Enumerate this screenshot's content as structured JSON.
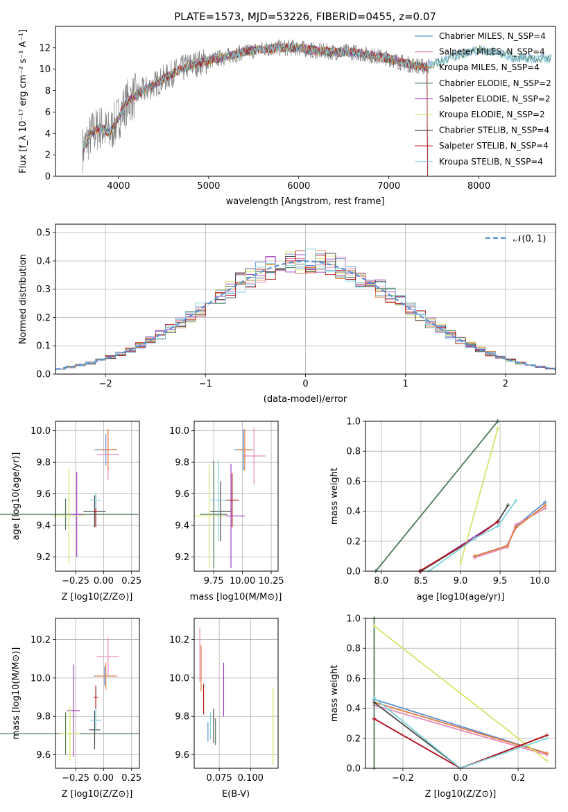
{
  "figure_title": "PLATE=1573, MJD=53226, FIBERID=0455, z=0.07",
  "models": [
    {
      "name": "Chabrier MILES",
      "color": "#5b8fd4"
    },
    {
      "name": "Salpeter MILES",
      "color": "#e889b9"
    },
    {
      "name": "Kroupa MILES",
      "color": "#e07b39"
    },
    {
      "name": "Chabrier ELODIE",
      "color": "#4c7a57"
    },
    {
      "name": "Salpeter ELODIE",
      "color": "#9a3fc9"
    },
    {
      "name": "Kroupa ELODIE",
      "color": "#d7e36a"
    },
    {
      "name": "Chabrier STELIB",
      "color": "#454545"
    },
    {
      "name": "Salpeter STELIB",
      "color": "#b8171a"
    },
    {
      "name": "Kroupa STELIB",
      "color": "#7fd3dc"
    }
  ],
  "chart_data": [
    {
      "id": "spectrum",
      "type": "line",
      "xlabel": "wavelength [Angstrom, rest frame]",
      "ylabel": "Flux [f_λ 10⁻¹⁷ erg cm⁻² s⁻¹ A⁻¹]",
      "xlim": [
        3300,
        8850
      ],
      "ylim": [
        0,
        14
      ],
      "xticks": [
        4000,
        5000,
        6000,
        7000,
        8000
      ],
      "yticks": [
        0,
        2,
        4,
        6,
        8,
        10,
        12
      ],
      "grid": false,
      "legend": "top-right",
      "legend_entries": [
        "Chabrier MILES, N_SSP=4",
        "Salpeter MILES, N_SSP=4",
        "Kroupa MILES, N_SSP=4",
        "Chabrier ELODIE, N_SSP=2",
        "Salpeter ELODIE, N_SSP=2",
        "Kroupa ELODIE, N_SSP=2",
        "Chabrier STELIB, N_SSP=4",
        "Salpeter STELIB, N_SSP=4",
        "Kroupa STELIB, N_SSP=4"
      ],
      "data_envelope": {
        "x": [
          3600,
          3700,
          3800,
          3900,
          4000,
          4100,
          4200,
          4400,
          4600,
          4800,
          5000,
          5200,
          5400,
          5600,
          5800,
          6000,
          6200,
          6400,
          6600,
          6800,
          7000,
          7200,
          7400,
          7600,
          7800,
          8000,
          8200,
          8400
        ],
        "y": [
          2.5,
          4.0,
          4.6,
          4.0,
          5.5,
          7.0,
          7.6,
          8.6,
          9.6,
          10.4,
          10.8,
          11.2,
          11.6,
          11.9,
          12.0,
          12.0,
          11.7,
          11.6,
          11.6,
          11.3,
          11.0,
          10.5,
          10.2,
          10.8,
          11.4,
          11.8,
          11.6,
          11.0
        ]
      }
    },
    {
      "id": "residuals",
      "type": "bar",
      "xlabel": "(data-model)/error",
      "ylabel": "Normed distribution",
      "xlim": [
        -2.5,
        2.5
      ],
      "ylim": [
        0,
        0.53
      ],
      "xticks": [
        -2,
        -1,
        0,
        1,
        2
      ],
      "yticks": [
        0.0,
        0.1,
        0.2,
        0.3,
        0.4,
        0.5
      ],
      "grid": true,
      "legend": "top-right",
      "legend_entries": [
        "N(0,1)"
      ],
      "bin_width": 0.1,
      "curve": {
        "name": "N(0,1)",
        "mean": 0,
        "sigma": 1
      }
    },
    {
      "id": "age_vs_Z",
      "type": "scatter",
      "xlabel": "Z [log10(Z/Z⊙)]",
      "ylabel": "age [log10(age/yr)]",
      "xlim": [
        -0.43,
        0.32
      ],
      "ylim": [
        9.11,
        10.06
      ],
      "xticks": [
        -0.25,
        0.0,
        0.25
      ],
      "yticks": [
        9.2,
        9.4,
        9.6,
        9.8,
        10.0
      ],
      "grid": true,
      "points": [
        {
          "x": 0.02,
          "y": 9.88,
          "xerr": 0.1,
          "yerr": 0.1,
          "model": 0
        },
        {
          "x": 0.04,
          "y": 9.85,
          "xerr": 0.1,
          "yerr": 0.16,
          "model": 1
        },
        {
          "x": 0.04,
          "y": 9.88,
          "xerr": 0.08,
          "yerr": 0.13,
          "model": 2
        },
        {
          "x": -0.34,
          "y": 9.47,
          "xerr": 0.65,
          "yerr": 0.1,
          "model": 3
        },
        {
          "x": -0.24,
          "y": 9.47,
          "xerr": 0.05,
          "yerr": 0.27,
          "model": 4
        },
        {
          "x": -0.31,
          "y": 9.46,
          "xerr": 0.15,
          "yerr": 0.3,
          "model": 5
        },
        {
          "x": -0.08,
          "y": 9.49,
          "xerr": 0.1,
          "yerr": 0.1,
          "model": 6
        },
        {
          "x": -0.07,
          "y": 9.49,
          "xerr": 0.02,
          "yerr": 0.1,
          "model": 7
        },
        {
          "x": -0.07,
          "y": 9.56,
          "xerr": 0.05,
          "yerr": 0.05,
          "model": 8
        }
      ]
    },
    {
      "id": "age_vs_mass",
      "type": "scatter",
      "xlabel": "mass [log10(M/M⊙)]",
      "ylabel": "",
      "xlim": [
        9.58,
        10.31
      ],
      "ylim": [
        9.11,
        10.06
      ],
      "xticks": [
        9.75,
        10.0,
        10.25
      ],
      "yticks": [
        9.2,
        9.4,
        9.6,
        9.8,
        10.0
      ],
      "grid": true,
      "points": [
        {
          "x": 10.01,
          "y": 9.88,
          "xerr": 0.08,
          "yerr": 0.13,
          "model": 0
        },
        {
          "x": 10.1,
          "y": 9.84,
          "xerr": 0.1,
          "yerr": 0.18,
          "model": 1
        },
        {
          "x": 10.02,
          "y": 9.88,
          "xerr": 0.06,
          "yerr": 0.13,
          "model": 2
        },
        {
          "x": 9.75,
          "y": 9.47,
          "xerr": 0.12,
          "yerr": 0.34,
          "model": 3
        },
        {
          "x": 9.9,
          "y": 9.46,
          "xerr": 0.12,
          "yerr": 0.33,
          "model": 4
        },
        {
          "x": 9.71,
          "y": 9.46,
          "xerr": 0.14,
          "yerr": 0.33,
          "model": 5
        },
        {
          "x": 9.81,
          "y": 9.49,
          "xerr": 0.09,
          "yerr": 0.19,
          "model": 6
        },
        {
          "x": 9.91,
          "y": 9.56,
          "xerr": 0.06,
          "yerr": 0.17,
          "model": 7
        },
        {
          "x": 9.79,
          "y": 9.56,
          "xerr": 0.07,
          "yerr": 0.26,
          "model": 8
        }
      ]
    },
    {
      "id": "weight_vs_age",
      "type": "line",
      "xlabel": "age [log10(age/yr)]",
      "ylabel": "mass weight",
      "xlim": [
        7.8,
        10.2
      ],
      "ylim": [
        0,
        1.0
      ],
      "xticks": [
        8.0,
        8.5,
        9.0,
        9.5,
        10.0
      ],
      "yticks": [
        0.0,
        0.2,
        0.4,
        0.6,
        0.8,
        1.0
      ],
      "grid": true,
      "series": [
        {
          "model": 0,
          "x": [
            9.18,
            9.59,
            9.7,
            10.07
          ],
          "y": [
            0.1,
            0.17,
            0.3,
            0.46
          ]
        },
        {
          "model": 1,
          "x": [
            9.18,
            9.59,
            9.7,
            10.07
          ],
          "y": [
            0.09,
            0.16,
            0.31,
            0.42
          ]
        },
        {
          "model": 2,
          "x": [
            9.18,
            9.59,
            9.7,
            10.07
          ],
          "y": [
            0.1,
            0.17,
            0.29,
            0.44
          ]
        },
        {
          "model": 3,
          "x": [
            7.93,
            9.47
          ],
          "y": [
            0.0,
            1.0
          ]
        },
        {
          "model": 4,
          "x": [
            8.5,
            9.47
          ],
          "y": [
            0.0,
            0.33
          ]
        },
        {
          "model": 5,
          "x": [
            9.0,
            9.47
          ],
          "y": [
            0.05,
            0.95
          ]
        },
        {
          "model": 6,
          "x": [
            8.5,
            9.18,
            9.47,
            9.6
          ],
          "y": [
            0.0,
            0.22,
            0.33,
            0.44
          ]
        },
        {
          "model": 7,
          "x": [
            8.48,
            9.18,
            9.47
          ],
          "y": [
            0.0,
            0.22,
            0.33
          ]
        },
        {
          "model": 8,
          "x": [
            8.6,
            9.18,
            9.47,
            9.7
          ],
          "y": [
            0.0,
            0.22,
            0.3,
            0.47
          ]
        }
      ]
    },
    {
      "id": "mass_vs_Z",
      "type": "scatter",
      "xlabel": "Z [log10(Z/Z⊙)]",
      "ylabel": "mass [log10(M/M⊙)]",
      "xlim": [
        -0.43,
        0.32
      ],
      "ylim": [
        9.53,
        10.31
      ],
      "xticks": [
        -0.25,
        0.0,
        0.25
      ],
      "yticks": [
        9.6,
        9.8,
        10.0,
        10.2
      ],
      "grid": true,
      "points": [
        {
          "x": 0.01,
          "y": 10.01,
          "xerr": 0.1,
          "yerr": 0.05,
          "model": 0
        },
        {
          "x": 0.04,
          "y": 10.11,
          "xerr": 0.1,
          "yerr": 0.1,
          "model": 1
        },
        {
          "x": 0.02,
          "y": 10.01,
          "xerr": 0.1,
          "yerr": 0.07,
          "model": 2
        },
        {
          "x": -0.34,
          "y": 9.71,
          "xerr": 0.66,
          "yerr": 0.11,
          "model": 3
        },
        {
          "x": -0.27,
          "y": 9.83,
          "xerr": 0.06,
          "yerr": 0.24,
          "model": 4
        },
        {
          "x": -0.3,
          "y": 9.71,
          "xerr": 0.09,
          "yerr": 0.14,
          "model": 5
        },
        {
          "x": -0.08,
          "y": 9.73,
          "xerr": 0.05,
          "yerr": 0.1,
          "model": 6
        },
        {
          "x": -0.07,
          "y": 9.9,
          "xerr": 0.02,
          "yerr": 0.06,
          "model": 7
        },
        {
          "x": -0.07,
          "y": 9.78,
          "xerr": 0.05,
          "yerr": 0.06,
          "model": 8
        }
      ]
    },
    {
      "id": "mass_vs_ebv",
      "type": "scatter",
      "xlabel": "E(B-V)",
      "ylabel": "",
      "xlim": [
        0.055,
        0.122
      ],
      "ylim": [
        9.53,
        10.31
      ],
      "xticks": [
        0.075,
        0.1
      ],
      "xticklabels": [
        "0.075",
        "0.100"
      ],
      "yticks": [
        9.6,
        9.8,
        10.0,
        10.2
      ],
      "grid": true,
      "points": [
        {
          "x": 0.066,
          "y": 9.72,
          "yerr": 0.05,
          "model": 0
        },
        {
          "x": 0.0595,
          "y": 10.12,
          "yerr": 0.14,
          "model": 1
        },
        {
          "x": 0.0605,
          "y": 10.05,
          "yerr": 0.12,
          "model": 2
        },
        {
          "x": 0.072,
          "y": 9.72,
          "yerr": 0.07,
          "model": 3
        },
        {
          "x": 0.0785,
          "y": 9.94,
          "yerr": 0.14,
          "model": 4
        },
        {
          "x": 0.118,
          "y": 9.75,
          "yerr": 0.2,
          "model": 5
        },
        {
          "x": 0.0705,
          "y": 9.75,
          "yerr": 0.09,
          "model": 6
        },
        {
          "x": 0.0625,
          "y": 9.89,
          "yerr": 0.08,
          "model": 7
        },
        {
          "x": 0.068,
          "y": 9.75,
          "yerr": 0.07,
          "model": 8
        }
      ]
    },
    {
      "id": "weight_vs_Z",
      "type": "line",
      "xlabel": "Z [log10(Z/Z⊙)]",
      "ylabel": "mass weight",
      "xlim": [
        -0.33,
        0.33
      ],
      "ylim": [
        0,
        1.0
      ],
      "xticks": [
        -0.2,
        0.0,
        0.2
      ],
      "yticks": [
        0.0,
        0.2,
        0.4,
        0.6,
        0.8,
        1.0
      ],
      "grid": true,
      "series": [
        {
          "model": 0,
          "x": [
            -0.3,
            0.3
          ],
          "y": [
            0.46,
            0.1
          ]
        },
        {
          "model": 1,
          "x": [
            -0.3,
            0.3
          ],
          "y": [
            0.42,
            0.09
          ]
        },
        {
          "model": 2,
          "x": [
            -0.3,
            0.3
          ],
          "y": [
            0.44,
            0.1
          ]
        },
        {
          "model": 3,
          "x": [
            -0.3,
            -0.3
          ],
          "y": [
            0.0,
            1.0
          ]
        },
        {
          "model": 4,
          "x": [
            -0.3,
            0.0,
            0.3
          ],
          "y": [
            0.33,
            0.0,
            0.22
          ]
        },
        {
          "model": 5,
          "x": [
            -0.3,
            0.3
          ],
          "y": [
            0.95,
            0.05
          ]
        },
        {
          "model": 6,
          "x": [
            -0.3,
            0.0,
            0.3
          ],
          "y": [
            0.44,
            0.0,
            0.22
          ]
        },
        {
          "model": 7,
          "x": [
            -0.3,
            0.0,
            0.3
          ],
          "y": [
            0.33,
            0.0,
            0.22
          ]
        },
        {
          "model": 8,
          "x": [
            -0.3,
            0.0,
            0.3
          ],
          "y": [
            0.47,
            0.0,
            0.2
          ]
        }
      ]
    }
  ]
}
